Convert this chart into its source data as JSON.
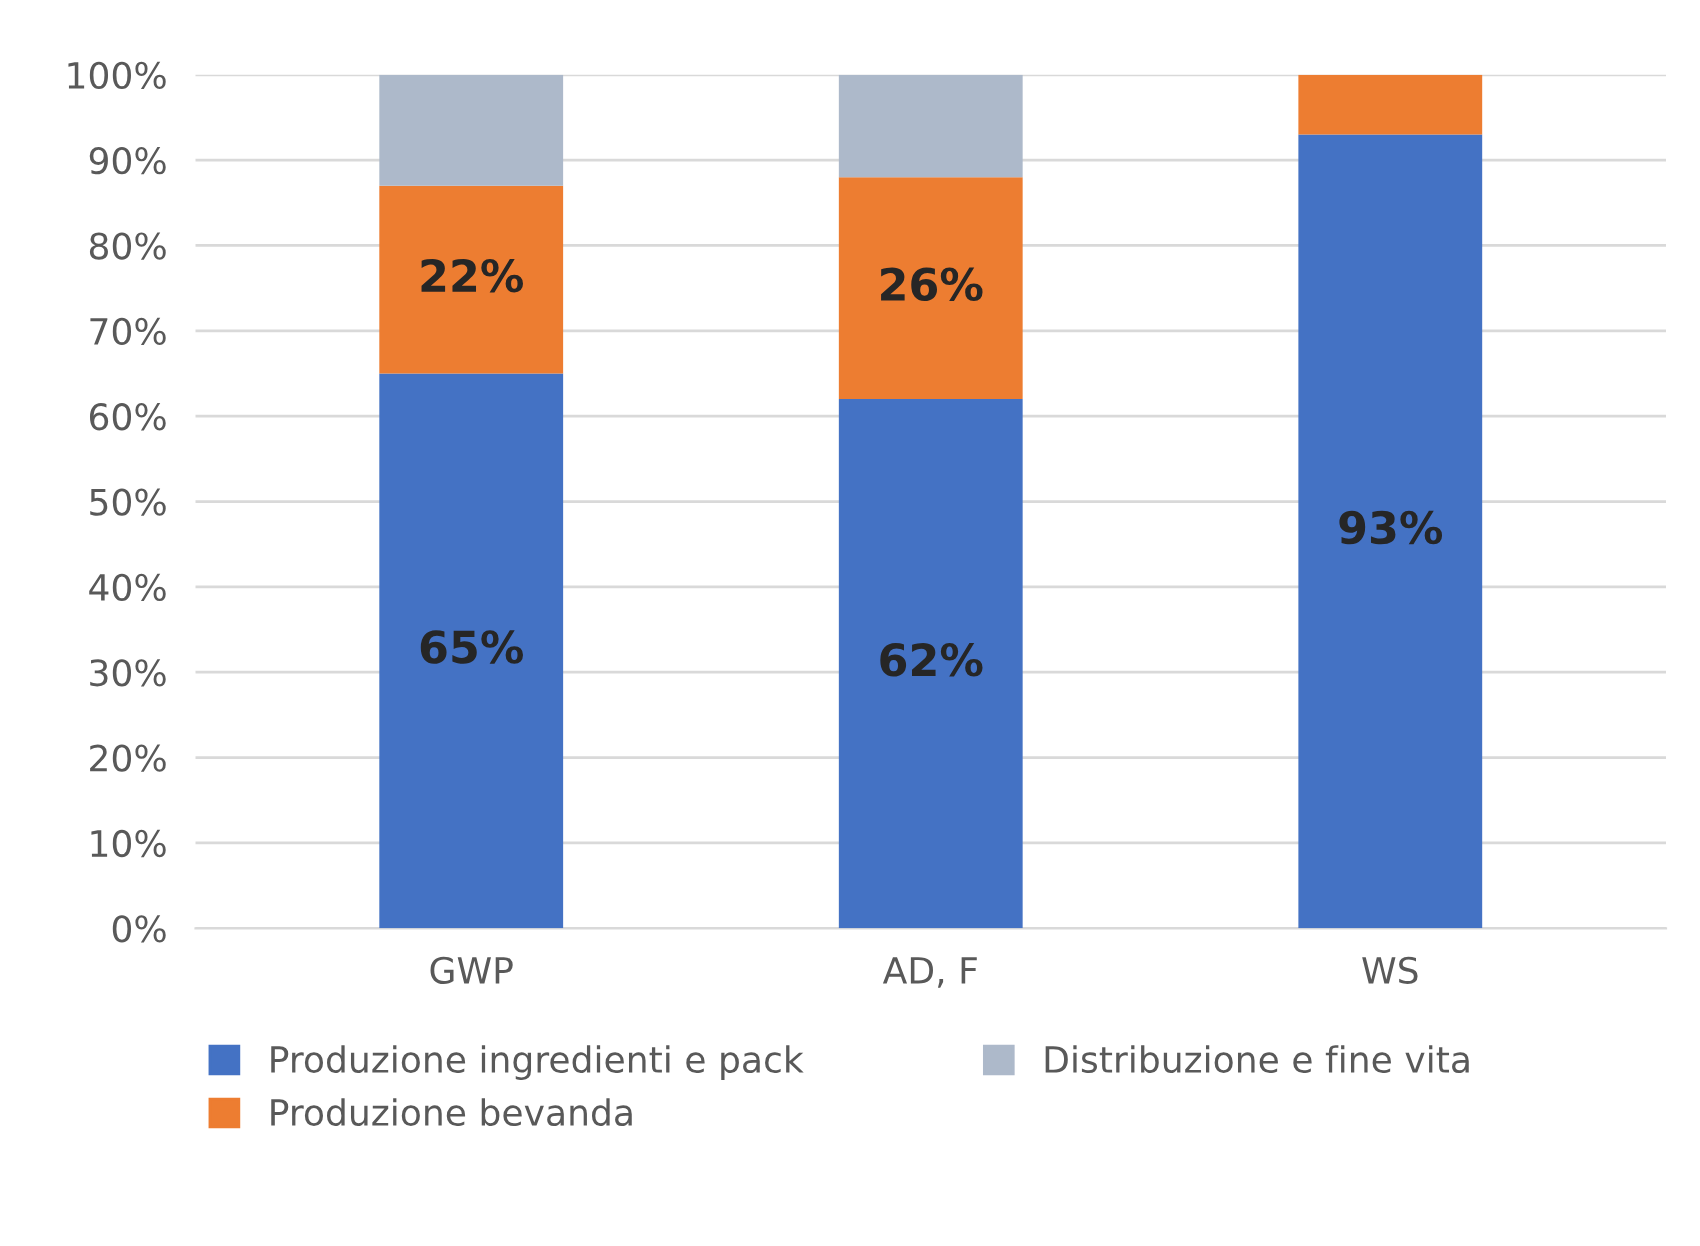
{
  "chart_data": {
    "type": "bar",
    "stacked": true,
    "categories": [
      "GWP",
      "AD, F",
      "WS"
    ],
    "series": [
      {
        "name": "Produzione ingredienti e pack",
        "color": "#4472c4",
        "values": [
          65,
          62,
          93
        ],
        "value_labels": [
          "65%",
          "62%",
          "93%"
        ]
      },
      {
        "name": "Produzione bevanda",
        "color": "#ed7d31",
        "values": [
          22,
          26,
          7
        ],
        "value_labels": [
          "22%",
          "26%",
          null
        ]
      },
      {
        "name": "Distribuzione e fine vita",
        "color": "#adb9ca",
        "values": [
          13,
          12,
          0
        ],
        "value_labels": [
          null,
          null,
          null
        ]
      }
    ],
    "ylim": [
      0,
      100
    ],
    "yticks": [
      {
        "value": 0,
        "label": "0%"
      },
      {
        "value": 10,
        "label": "10%"
      },
      {
        "value": 20,
        "label": "20%"
      },
      {
        "value": 30,
        "label": "30%"
      },
      {
        "value": 40,
        "label": "40%"
      },
      {
        "value": 50,
        "label": "50%"
      },
      {
        "value": 60,
        "label": "60%"
      },
      {
        "value": 70,
        "label": "70%"
      },
      {
        "value": 80,
        "label": "80%"
      },
      {
        "value": 90,
        "label": "90%"
      },
      {
        "value": 100,
        "label": "100%"
      }
    ],
    "grid": "y",
    "legend": "bottom"
  }
}
